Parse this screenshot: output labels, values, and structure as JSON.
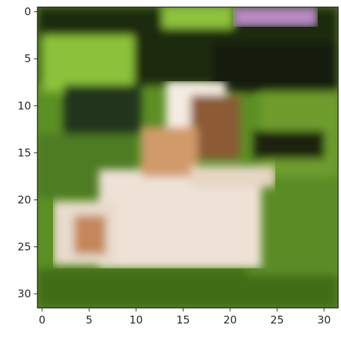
{
  "figure": {
    "kind": "matplotlib-imshow",
    "description_free": true,
    "xticks": [
      "0",
      "5",
      "10",
      "15",
      "20",
      "25",
      "30"
    ],
    "yticks": [
      "0",
      "5",
      "10",
      "15",
      "20",
      "25",
      "30"
    ],
    "xlim": [
      -0.5,
      31.5
    ],
    "ylim": [
      31.5,
      -0.5
    ],
    "grid": false,
    "image_resolution": [
      32,
      32
    ],
    "frame_color": "#000000",
    "tick_color": "#262626"
  },
  "colors": {
    "dark_foliage": "#1e2a10",
    "mid_green": "#4e7c22",
    "bright_green": "#8cc23a",
    "grass_green": "#5c8f24",
    "deep_grass": "#3f6d18",
    "cream": "#eee2d6",
    "light_cream": "#f4ece2",
    "tan": "#d19a6a",
    "brown": "#8c5a34",
    "pink_flower": "#b98ac6",
    "black": "#0d0d0b"
  }
}
